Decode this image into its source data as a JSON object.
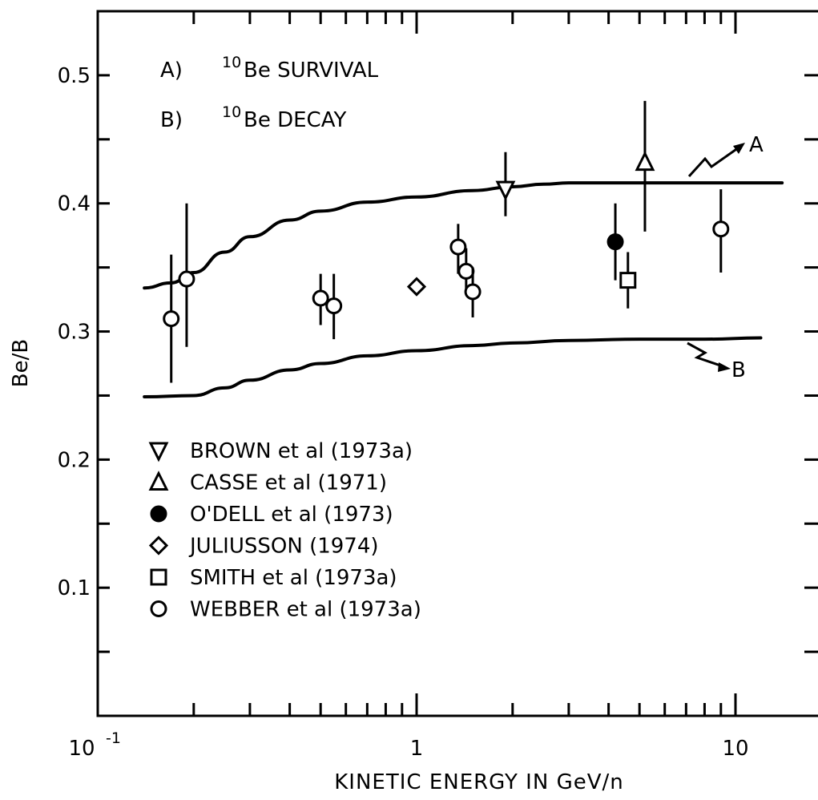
{
  "chart_data": {
    "type": "scatter",
    "xlabel": "KINETIC ENERGY IN GeV/n",
    "ylabel": "Be/B",
    "xscale": "log",
    "xlim": [
      0.1,
      20
    ],
    "ylim": [
      0.0,
      0.55
    ],
    "grid": false,
    "x_tick_labels": [
      {
        "value": 0.1,
        "base": "10",
        "exp": "-1"
      },
      {
        "value": 1,
        "base": "1",
        "exp": ""
      },
      {
        "value": 10,
        "base": "10",
        "exp": ""
      }
    ],
    "y_tick_labels": [
      {
        "value": 0.1,
        "label": "0.1"
      },
      {
        "value": 0.2,
        "label": "0.2"
      },
      {
        "value": 0.3,
        "label": "0.3"
      },
      {
        "value": 0.4,
        "label": "0.4"
      },
      {
        "value": 0.5,
        "label": "0.5"
      }
    ],
    "y_minor_ticks": [
      0.05,
      0.15,
      0.25,
      0.35,
      0.45
    ],
    "annotations": [
      {
        "id": "A",
        "prefix": "A)",
        "sup": "10",
        "text": "Be SURVIVAL"
      },
      {
        "id": "B",
        "prefix": "B)",
        "sup": "10",
        "text": "Be DECAY"
      }
    ],
    "curves": [
      {
        "name": "A",
        "points": [
          [
            0.14,
            0.334
          ],
          [
            0.17,
            0.338
          ],
          [
            0.2,
            0.346
          ],
          [
            0.25,
            0.362
          ],
          [
            0.3,
            0.374
          ],
          [
            0.4,
            0.387
          ],
          [
            0.5,
            0.394
          ],
          [
            0.7,
            0.401
          ],
          [
            1.0,
            0.405
          ],
          [
            1.5,
            0.41
          ],
          [
            2.0,
            0.413
          ],
          [
            2.5,
            0.415
          ],
          [
            3,
            0.416
          ],
          [
            5,
            0.416
          ],
          [
            8,
            0.416
          ],
          [
            14,
            0.416
          ]
        ]
      },
      {
        "name": "B",
        "points": [
          [
            0.14,
            0.249
          ],
          [
            0.2,
            0.25
          ],
          [
            0.25,
            0.256
          ],
          [
            0.3,
            0.262
          ],
          [
            0.4,
            0.27
          ],
          [
            0.5,
            0.275
          ],
          [
            0.7,
            0.281
          ],
          [
            1.0,
            0.285
          ],
          [
            1.5,
            0.289
          ],
          [
            2,
            0.291
          ],
          [
            3,
            0.293
          ],
          [
            5,
            0.294
          ],
          [
            8,
            0.294
          ],
          [
            12,
            0.295
          ]
        ]
      }
    ],
    "series": [
      {
        "name": "BROWN et al (1973a)",
        "marker": "triangle-down",
        "points": [
          {
            "x": 1.9,
            "y": 0.411,
            "ylo": 0.39,
            "yhi": 0.44
          }
        ]
      },
      {
        "name": "CASSE et al (1971)",
        "marker": "triangle-up",
        "points": [
          {
            "x": 5.2,
            "y": 0.432,
            "ylo": 0.378,
            "yhi": 0.48
          }
        ]
      },
      {
        "name": "O'DELL et al (1973)",
        "marker": "circle-filled",
        "points": [
          {
            "x": 4.2,
            "y": 0.37,
            "ylo": 0.34,
            "yhi": 0.4
          }
        ]
      },
      {
        "name": "JULIUSSON (1974)",
        "marker": "diamond",
        "points": [
          {
            "x": 1.0,
            "y": 0.335,
            "ylo": null,
            "yhi": null
          }
        ]
      },
      {
        "name": "SMITH et al (1973a)",
        "marker": "square",
        "points": [
          {
            "x": 4.6,
            "y": 0.34,
            "ylo": 0.318,
            "yhi": 0.362
          }
        ]
      },
      {
        "name": "WEBBER et al (1973a)",
        "marker": "circle-open",
        "points": [
          {
            "x": 0.17,
            "y": 0.31,
            "ylo": 0.26,
            "yhi": 0.36
          },
          {
            "x": 0.19,
            "y": 0.341,
            "ylo": 0.288,
            "yhi": 0.4
          },
          {
            "x": 0.5,
            "y": 0.326,
            "ylo": 0.305,
            "yhi": 0.345
          },
          {
            "x": 0.55,
            "y": 0.32,
            "ylo": 0.294,
            "yhi": 0.345
          },
          {
            "x": 1.35,
            "y": 0.366,
            "ylo": 0.345,
            "yhi": 0.384
          },
          {
            "x": 1.43,
            "y": 0.347,
            "ylo": 0.33,
            "yhi": 0.365
          },
          {
            "x": 1.5,
            "y": 0.331,
            "ylo": 0.311,
            "yhi": 0.35
          },
          {
            "x": 9.0,
            "y": 0.38,
            "ylo": 0.346,
            "yhi": 0.411
          }
        ]
      }
    ],
    "legend": {
      "placement": "lower-left"
    }
  }
}
